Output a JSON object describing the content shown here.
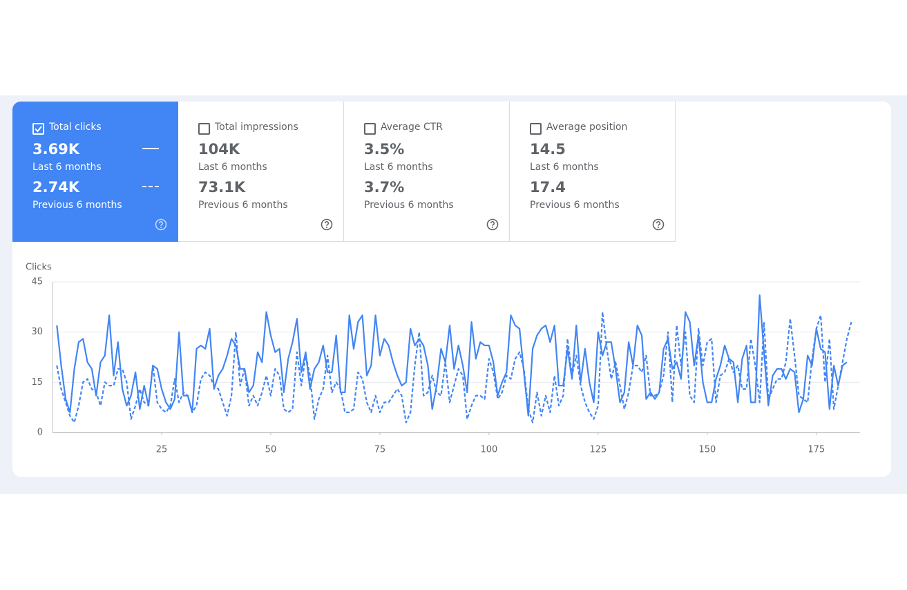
{
  "metrics": [
    {
      "label": "Total clicks",
      "selected": true,
      "current": "3.69K",
      "current_period": "Last 6 months",
      "previous": "2.74K",
      "previous_period": "Previous 6 months"
    },
    {
      "label": "Total impressions",
      "selected": false,
      "current": "104K",
      "current_period": "Last 6 months",
      "previous": "73.1K",
      "previous_period": "Previous 6 months"
    },
    {
      "label": "Average CTR",
      "selected": false,
      "current": "3.5%",
      "current_period": "Last 6 months",
      "previous": "3.7%",
      "previous_period": "Previous 6 months"
    },
    {
      "label": "Average position",
      "selected": false,
      "current": "14.5",
      "current_period": "Last 6 months",
      "previous": "17.4",
      "previous_period": "Previous 6 months"
    }
  ],
  "chart_data": {
    "type": "line",
    "ylabel": "Clicks",
    "xlim": [
      0,
      185
    ],
    "xticks": [
      25,
      50,
      75,
      100,
      125,
      150,
      175
    ],
    "ylim": [
      0,
      45
    ],
    "yticks": [
      0,
      15,
      30,
      45
    ],
    "grid": true,
    "x": [
      1,
      2,
      3,
      4,
      5,
      6,
      7,
      8,
      9,
      10,
      11,
      12,
      13,
      14,
      15,
      16,
      17,
      18,
      19,
      20,
      21,
      22,
      23,
      24,
      25,
      26,
      27,
      28,
      29,
      30,
      31,
      32,
      33,
      34,
      35,
      36,
      37,
      38,
      39,
      40,
      41,
      42,
      43,
      44,
      45,
      46,
      47,
      48,
      49,
      50,
      51,
      52,
      53,
      54,
      55,
      56,
      57,
      58,
      59,
      60,
      61,
      62,
      63,
      64,
      65,
      66,
      67,
      68,
      69,
      70,
      71,
      72,
      73,
      74,
      75,
      76,
      77,
      78,
      79,
      80,
      81,
      82,
      83,
      84,
      85,
      86,
      87,
      88,
      89,
      90,
      91,
      92,
      93,
      94,
      95,
      96,
      97,
      98,
      99,
      100,
      101,
      102,
      103,
      104,
      105,
      106,
      107,
      108,
      109,
      110,
      111,
      112,
      113,
      114,
      115,
      116,
      117,
      118,
      119,
      120,
      121,
      122,
      123,
      124,
      125,
      126,
      127,
      128,
      129,
      130,
      131,
      132,
      133,
      134,
      135,
      136,
      137,
      138,
      139,
      140,
      141,
      142,
      143,
      144,
      145,
      146,
      147,
      148,
      149,
      150,
      151,
      152,
      153,
      154,
      155,
      156,
      157,
      158,
      159,
      160,
      161,
      162,
      163,
      164,
      165,
      166,
      167,
      168,
      169,
      170,
      171,
      172,
      173,
      174,
      175,
      176,
      177,
      178,
      179,
      180,
      181,
      182,
      183
    ],
    "series": [
      {
        "color": "#4285f4",
        "style": "solid",
        "values": [
          32,
          20,
          10,
          6,
          19,
          27,
          28,
          21,
          19,
          11,
          21,
          23,
          35,
          17,
          27,
          13,
          8,
          11,
          18,
          7,
          14,
          8,
          20,
          19,
          13,
          9,
          7,
          10,
          30,
          11,
          11,
          6,
          25,
          26,
          25,
          31,
          13,
          17,
          19,
          23,
          28,
          26,
          19,
          19,
          12,
          14,
          24,
          21,
          36,
          29,
          24,
          25,
          12,
          22,
          27,
          34,
          18,
          24,
          13,
          19,
          21,
          26,
          18,
          18,
          29,
          12,
          12,
          35,
          25,
          33,
          35,
          17,
          20,
          35,
          23,
          28,
          26,
          21,
          17,
          14,
          15,
          31,
          26,
          28,
          26,
          20,
          7,
          14,
          25,
          21,
          32,
          19,
          26,
          20,
          12,
          33,
          22,
          27,
          26,
          26,
          21,
          11,
          15,
          18,
          35,
          32,
          31,
          18,
          5,
          25,
          29,
          31,
          32,
          27,
          32,
          14,
          14,
          25,
          16,
          32,
          15,
          25,
          15,
          9,
          30,
          23,
          27,
          27,
          19,
          9,
          12,
          27,
          20,
          32,
          29,
          10,
          12,
          10,
          12,
          25,
          28,
          19,
          21,
          16,
          36,
          33,
          20,
          29,
          15,
          9,
          9,
          16,
          20,
          26,
          22,
          21,
          9,
          22,
          26,
          9,
          9,
          41,
          24,
          8,
          17,
          19,
          19,
          16,
          19,
          18,
          6,
          10,
          23,
          20,
          31,
          25,
          24,
          7,
          20,
          14,
          20,
          21,
          null
        ]
      },
      {
        "color": "#4285f4",
        "style": "dashed",
        "values": [
          20,
          13,
          9,
          5,
          3,
          8,
          15,
          16,
          13,
          12,
          8,
          15,
          14,
          14,
          19,
          19,
          15,
          4,
          8,
          13,
          9,
          8,
          20,
          9,
          7,
          6,
          8,
          16,
          9,
          12,
          11,
          6,
          8,
          16,
          18,
          17,
          14,
          13,
          9,
          5,
          11,
          30,
          14,
          19,
          8,
          11,
          8,
          12,
          17,
          11,
          19,
          17,
          7,
          6,
          7,
          24,
          14,
          23,
          17,
          4,
          10,
          13,
          23,
          12,
          15,
          13,
          6,
          6,
          7,
          18,
          16,
          9,
          6,
          11,
          6,
          9,
          9,
          11,
          13,
          11,
          3,
          6,
          20,
          30,
          11,
          12,
          17,
          12,
          11,
          21,
          9,
          14,
          19,
          17,
          4,
          8,
          11,
          11,
          10,
          22,
          18,
          10,
          12,
          17,
          16,
          22,
          24,
          19,
          7,
          3,
          12,
          5,
          11,
          6,
          17,
          8,
          11,
          28,
          17,
          23,
          14,
          9,
          6,
          4,
          8,
          36,
          25,
          16,
          21,
          14,
          7,
          12,
          20,
          20,
          18,
          23,
          11,
          11,
          12,
          17,
          30,
          9,
          32,
          20,
          30,
          11,
          9,
          31,
          20,
          27,
          28,
          9,
          17,
          18,
          22,
          18,
          20,
          13,
          13,
          28,
          20,
          9,
          33,
          10,
          13,
          16,
          16,
          21,
          34,
          23,
          11,
          10,
          9,
          22,
          31,
          35,
          15,
          28,
          7,
          14,
          21,
          28,
          33
        ]
      }
    ]
  }
}
